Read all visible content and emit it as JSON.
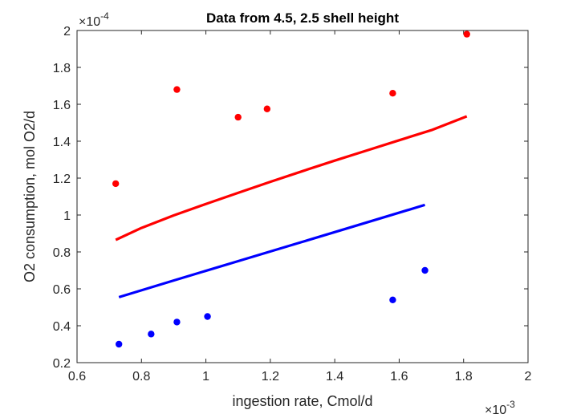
{
  "chart_data": {
    "type": "scatter",
    "title": "Data from 4.5, 2.5 shell height",
    "xlabel": "ingestion rate, Cmol/d",
    "ylabel": "O2 consumption, mol O2/d",
    "x_multiplier": {
      "base": "×10",
      "exponent": "-3"
    },
    "y_multiplier": {
      "base": "×10",
      "exponent": "-4"
    },
    "xlim": [
      0.6,
      2.0
    ],
    "ylim": [
      0.2,
      2.0
    ],
    "xticks": [
      "0.6",
      "0.8",
      "1",
      "1.2",
      "1.4",
      "1.6",
      "1.8",
      "2"
    ],
    "yticks": [
      "0.2",
      "0.4",
      "0.6",
      "0.8",
      "1",
      "1.2",
      "1.4",
      "1.6",
      "1.8",
      "2"
    ],
    "grid": false,
    "series": [
      {
        "kind": "points",
        "color": "#ff0000",
        "x": [
          0.72,
          0.91,
          1.1,
          1.19,
          1.58,
          1.81
        ],
        "y": [
          1.17,
          1.68,
          1.53,
          1.575,
          1.66,
          1.98
        ]
      },
      {
        "kind": "points",
        "color": "#0000ff",
        "x": [
          0.73,
          0.83,
          0.91,
          1.005,
          1.58,
          1.68
        ],
        "y": [
          0.3,
          0.355,
          0.42,
          0.45,
          0.54,
          0.7
        ]
      },
      {
        "kind": "line",
        "color": "#ff0000",
        "x": [
          0.72,
          0.8,
          0.9,
          1.0,
          1.1,
          1.2,
          1.3,
          1.4,
          1.5,
          1.6,
          1.7,
          1.81
        ],
        "y": [
          0.865,
          0.93,
          0.998,
          1.06,
          1.12,
          1.18,
          1.238,
          1.295,
          1.35,
          1.405,
          1.46,
          1.535
        ]
      },
      {
        "kind": "line",
        "color": "#0000ff",
        "x": [
          0.73,
          0.9,
          1.1,
          1.3,
          1.5,
          1.68
        ],
        "y": [
          0.555,
          0.645,
          0.75,
          0.855,
          0.96,
          1.055
        ]
      }
    ]
  }
}
